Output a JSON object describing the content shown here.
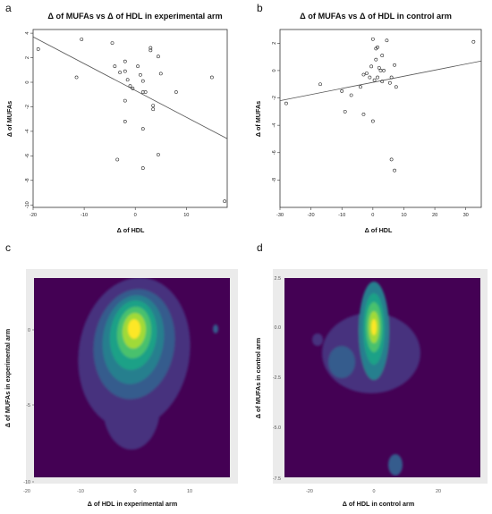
{
  "chart_data": [
    {
      "panel": "a",
      "type": "scatter",
      "title": "Δ of MUFAs vs Δ of HDL in experimental arm",
      "xlabel": "Δ of HDL",
      "ylabel": "Δ of MUFAs",
      "xlim": [
        -20,
        18
      ],
      "ylim": [
        -10.2,
        4.3
      ],
      "xticks": [
        -20,
        -10,
        0,
        10
      ],
      "yticks": [
        -10,
        -8,
        -6,
        -4,
        -2,
        0,
        2,
        4
      ],
      "grid": false,
      "points": [
        {
          "x": -19,
          "y": 2.7
        },
        {
          "x": -10.5,
          "y": 3.5
        },
        {
          "x": -11.5,
          "y": 0.4
        },
        {
          "x": -4.5,
          "y": 3.2
        },
        {
          "x": -4,
          "y": 1.3
        },
        {
          "x": -3,
          "y": 0.8
        },
        {
          "x": -2,
          "y": 1.7
        },
        {
          "x": -2,
          "y": 0.9
        },
        {
          "x": -1.5,
          "y": 0.2
        },
        {
          "x": -1,
          "y": -0.3
        },
        {
          "x": -2,
          "y": -1.5
        },
        {
          "x": -2,
          "y": -3.2
        },
        {
          "x": -0.5,
          "y": -0.5
        },
        {
          "x": 0.5,
          "y": 1.3
        },
        {
          "x": 1,
          "y": 0.6
        },
        {
          "x": 1.5,
          "y": 0.1
        },
        {
          "x": 1.5,
          "y": -0.8
        },
        {
          "x": 2,
          "y": -0.8
        },
        {
          "x": 3,
          "y": 2.8
        },
        {
          "x": 3,
          "y": 2.6
        },
        {
          "x": 3.5,
          "y": -1.9
        },
        {
          "x": 3.5,
          "y": -2.2
        },
        {
          "x": 4.5,
          "y": 2.1
        },
        {
          "x": 4.5,
          "y": -5.9
        },
        {
          "x": 5,
          "y": 0.7
        },
        {
          "x": 8,
          "y": -0.8
        },
        {
          "x": 1.5,
          "y": -3.8
        },
        {
          "x": -3.5,
          "y": -6.3
        },
        {
          "x": 1.5,
          "y": -7
        },
        {
          "x": 15,
          "y": 0.4
        },
        {
          "x": 17.5,
          "y": -9.7
        }
      ],
      "fit_line": {
        "x": [
          -20,
          18
        ],
        "y": [
          3.7,
          -4.6
        ]
      }
    },
    {
      "panel": "b",
      "type": "scatter",
      "title": "Δ of MUFAs vs Δ of HDL in control arm",
      "xlabel": "Δ of HDL",
      "ylabel": "Δ of MUFAs",
      "xlim": [
        -30,
        35
      ],
      "ylim": [
        -10,
        3
      ],
      "xticks": [
        -30,
        -20,
        -10,
        0,
        10,
        20,
        30
      ],
      "yticks": [
        -8,
        -6,
        -4,
        -2,
        0,
        2
      ],
      "grid": false,
      "points": [
        {
          "x": -28,
          "y": -2.4
        },
        {
          "x": -17,
          "y": -1
        },
        {
          "x": -10,
          "y": -1.5
        },
        {
          "x": -9,
          "y": -3
        },
        {
          "x": -7,
          "y": -1.8
        },
        {
          "x": -4,
          "y": -1.2
        },
        {
          "x": -3,
          "y": -0.3
        },
        {
          "x": -2,
          "y": -0.2
        },
        {
          "x": -3,
          "y": -3.2
        },
        {
          "x": -1,
          "y": -0.5
        },
        {
          "x": -0.5,
          "y": 0.3
        },
        {
          "x": 0,
          "y": 2.3
        },
        {
          "x": 0.5,
          "y": -0.7
        },
        {
          "x": 1,
          "y": 0.8
        },
        {
          "x": 1,
          "y": 1.6
        },
        {
          "x": 1.5,
          "y": 1.7
        },
        {
          "x": 1.5,
          "y": -0.5
        },
        {
          "x": 2,
          "y": 0.2
        },
        {
          "x": 2.5,
          "y": 0
        },
        {
          "x": 3,
          "y": 1.1
        },
        {
          "x": 3,
          "y": -0.8
        },
        {
          "x": 3.5,
          "y": 0
        },
        {
          "x": 4.5,
          "y": 2.2
        },
        {
          "x": 5.5,
          "y": -0.9
        },
        {
          "x": 6,
          "y": -0.5
        },
        {
          "x": 7,
          "y": 0.4
        },
        {
          "x": 7.5,
          "y": -1.2
        },
        {
          "x": 0,
          "y": -3.7
        },
        {
          "x": 6,
          "y": -6.5
        },
        {
          "x": 7,
          "y": -7.3
        },
        {
          "x": 32.5,
          "y": 2.1
        }
      ],
      "fit_line": {
        "x": [
          -30,
          35
        ],
        "y": [
          -2.2,
          0.7
        ]
      }
    },
    {
      "panel": "c",
      "type": "heatmap",
      "subtype": "2d-density",
      "xlabel": "Δ of HDL in experimental arm",
      "ylabel": "Δ of MUFAs in experimental arm",
      "xlim": [
        -20,
        18
      ],
      "ylim": [
        -10,
        2
      ],
      "xticks": [
        -20,
        -10,
        0,
        10
      ],
      "yticks": [
        -10,
        -5,
        0
      ],
      "colormap": [
        "#440154",
        "#46327e",
        "#365c8d",
        "#277f8e",
        "#1fa187",
        "#4ac16d",
        "#a0da39",
        "#fde725"
      ],
      "peak": {
        "x": 0,
        "y": 0
      }
    },
    {
      "panel": "d",
      "type": "heatmap",
      "subtype": "2d-density",
      "xlabel": "Δ of HDL in control arm",
      "ylabel": "Δ of MUFAs in control arm",
      "xlim": [
        -30,
        35
      ],
      "ylim": [
        -7.5,
        2.5
      ],
      "xticks": [
        -20,
        0,
        20
      ],
      "yticks": [
        -7.5,
        -5,
        -2.5,
        0,
        2.5
      ],
      "colormap": [
        "#440154",
        "#46327e",
        "#365c8d",
        "#277f8e",
        "#1fa187",
        "#4ac16d",
        "#a0da39",
        "#fde725"
      ],
      "peak": {
        "x": 0,
        "y": 0
      }
    }
  ],
  "labels": {
    "a": "a",
    "b": "b",
    "c": "c",
    "d": "d",
    "yt_c": [
      "-10",
      "-5",
      "0"
    ],
    "xt_c": [
      "-20",
      "-10",
      "0",
      "10"
    ],
    "yt_d": [
      "-7.5",
      "-5.0",
      "-2.5",
      "0.0",
      "2.5"
    ],
    "xt_d": [
      "-20",
      "0",
      "20"
    ]
  }
}
